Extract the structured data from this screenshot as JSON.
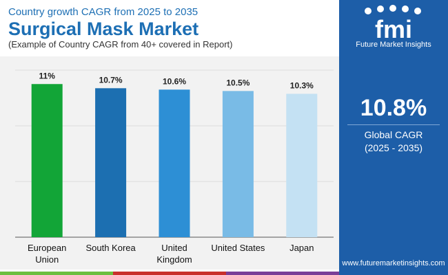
{
  "header": {
    "supertitle": "Country growth CAGR from 2025 to 2035",
    "title": "Surgical Mask Market",
    "note": "(Example of Country CAGR from 40+ covered in Report)"
  },
  "sidebar": {
    "brand": "Future Market Insights",
    "big_value": "10.8%",
    "label_line1": "Global CAGR",
    "label_line2": "(2025 - 2035)",
    "website": "www.futuremarketinsights.com"
  },
  "colors": {
    "brand_blue": "#1d6fb4",
    "sidebar_blue": "#1d5ea8",
    "panel_gray": "#f2f2f2",
    "stripe_green": "#6cbf3f",
    "stripe_red": "#c9302c",
    "stripe_purple": "#7b3f98"
  },
  "chart_data": {
    "type": "bar",
    "categories": [
      [
        "European",
        "Union"
      ],
      [
        "South Korea"
      ],
      [
        "United",
        "Kingdom"
      ],
      [
        "United States"
      ],
      [
        "Japan"
      ]
    ],
    "values": [
      11,
      10.7,
      10.6,
      10.5,
      10.3
    ],
    "value_labels": [
      "11%",
      "10.7%",
      "10.6%",
      "10.5%",
      "10.3%"
    ],
    "bar_colors": [
      "#12a537",
      "#1c6fb1",
      "#2d8fd5",
      "#79bbe6",
      "#c4e1f3"
    ],
    "ylim": [
      0,
      12
    ],
    "grid": true,
    "title": "",
    "xlabel": "",
    "ylabel": ""
  }
}
